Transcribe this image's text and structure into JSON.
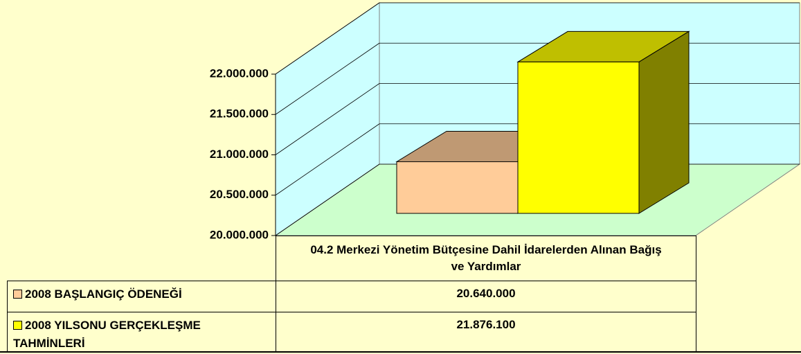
{
  "chart_data": {
    "type": "bar3d",
    "categories": [
      "04.2 Merkezi Yönetim Bütçesine Dahil İdarelerden Alınan Bağış ve Yardımlar"
    ],
    "series": [
      {
        "name": "2008 BAŞLANGIÇ ÖDENEĞİ",
        "color": "#ffcc99",
        "values": [
          20640000
        ],
        "value_labels": [
          "20.640.000"
        ]
      },
      {
        "name": "2008 YILSONU GERÇEKLEŞME TAHMİNLERİ",
        "color": "#ffff00",
        "values": [
          21876100
        ],
        "value_labels": [
          "21.876.100"
        ]
      }
    ],
    "ylim": [
      20000000,
      22000000
    ],
    "yticks": [
      {
        "value": 20000000,
        "label": "20.000.000"
      },
      {
        "value": 20500000,
        "label": "20.500.000"
      },
      {
        "value": 21000000,
        "label": "21.000.000"
      },
      {
        "value": 21500000,
        "label": "21.500.000"
      },
      {
        "value": 22000000,
        "label": "22.000.000"
      }
    ],
    "grid": true
  }
}
